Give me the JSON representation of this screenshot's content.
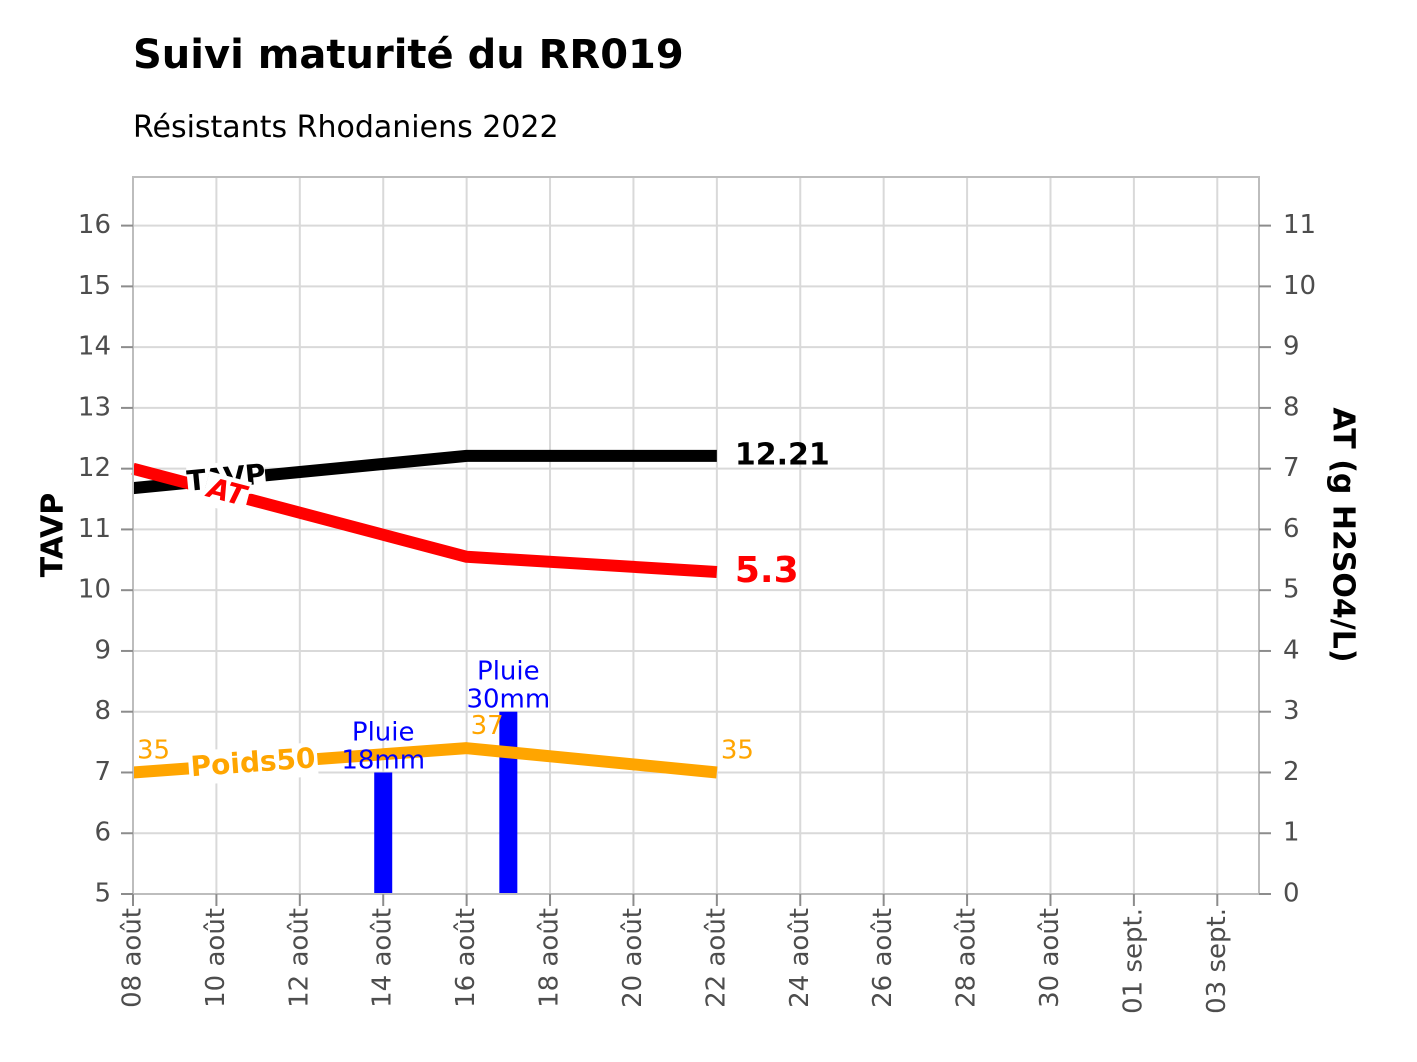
{
  "chart_data": {
    "type": "line",
    "title": "Suivi maturité du RR019",
    "subtitle": "Résistants Rhodaniens 2022",
    "y_left": {
      "label": "TAVP",
      "range": [
        5,
        16.8
      ],
      "ticks": [
        5,
        6,
        7,
        8,
        9,
        10,
        11,
        12,
        13,
        14,
        15,
        16
      ]
    },
    "y_right": {
      "label": "AT (g H2SO4/L)",
      "range": [
        0,
        11.8
      ],
      "ticks": [
        0,
        1,
        2,
        3,
        4,
        5,
        6,
        7,
        8,
        9,
        10,
        11
      ]
    },
    "x_axis": {
      "range": [
        "2022-08-08",
        "2022-09-04"
      ],
      "ticks": [
        "2022-08-08",
        "2022-08-10",
        "2022-08-12",
        "2022-08-14",
        "2022-08-16",
        "2022-08-18",
        "2022-08-20",
        "2022-08-22",
        "2022-08-24",
        "2022-08-26",
        "2022-08-28",
        "2022-08-30",
        "2022-09-01",
        "2022-09-03"
      ],
      "tick_labels": [
        "08 août",
        "10 août",
        "12 août",
        "14 août",
        "16 août",
        "18 août",
        "20 août",
        "22 août",
        "24 août",
        "26 août",
        "28 août",
        "30 août",
        "01 sept.",
        "03 sept."
      ]
    },
    "grid": true,
    "series": [
      {
        "name": "TAVP",
        "axis": "left",
        "color": "#000000",
        "x": [
          "2022-08-08",
          "2022-08-16",
          "2022-08-22"
        ],
        "y": [
          11.68,
          12.21,
          12.21
        ],
        "end_label": "12.21"
      },
      {
        "name": "AT",
        "axis": "right",
        "color": "#ff0000",
        "x": [
          "2022-08-08",
          "2022-08-16",
          "2022-08-22"
        ],
        "y": [
          7.0,
          5.55,
          5.3
        ],
        "end_label": "5.3"
      },
      {
        "name": "Poids50",
        "axis": "left",
        "color": "#ffa500",
        "x": [
          "2022-08-08",
          "2022-08-16",
          "2022-08-22"
        ],
        "y": [
          7.0,
          7.4,
          7.0
        ],
        "point_labels": [
          "35",
          "37",
          "35"
        ]
      }
    ],
    "rain_bars": {
      "color": "#0000ff",
      "axis": "left",
      "bars": [
        {
          "x": "2022-08-14",
          "value": 7.0,
          "label_line1": "Pluie",
          "label_line2": "18mm"
        },
        {
          "x": "2022-08-17",
          "value": 8.0,
          "label_line1": "Pluie",
          "label_line2": "30mm"
        }
      ]
    }
  }
}
